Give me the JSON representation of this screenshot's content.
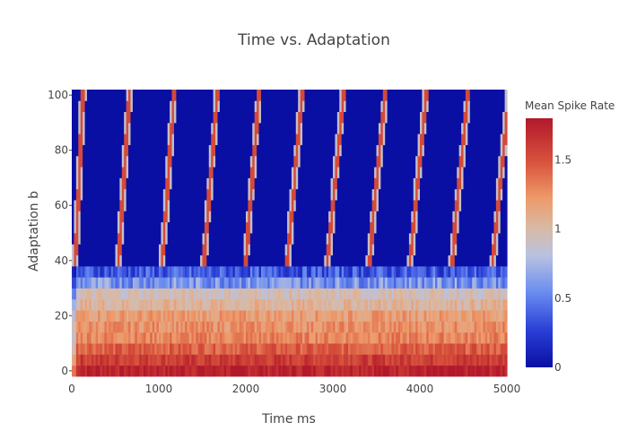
{
  "chart_data": {
    "type": "heatmap",
    "title": "Time vs. Adaptation",
    "xlabel": "Time ms",
    "ylabel": "Adaptation b",
    "xlim": [
      0,
      5000
    ],
    "ylim": [
      -2,
      102
    ],
    "x_ticks": [
      0,
      1000,
      2000,
      3000,
      4000,
      5000
    ],
    "x_tick_labels": [
      "0",
      "1000",
      "2000",
      "3000",
      "4000",
      "5000"
    ],
    "y_ticks": [
      0,
      20,
      40,
      60,
      80,
      100
    ],
    "y_tick_labels": [
      "0",
      "20",
      "40",
      "60",
      "80",
      "100"
    ],
    "colorbar": {
      "title": "Mean Spike Rate",
      "range": [
        0,
        1.8
      ],
      "ticks": [
        0,
        0.5,
        1,
        1.5
      ],
      "tick_labels": [
        "0",
        "0.5",
        "1",
        "1.5"
      ],
      "colorscale": [
        [
          0,
          "#0a0fa3"
        ],
        [
          0.15,
          "#2a3fd6"
        ],
        [
          0.3,
          "#6a8cf0"
        ],
        [
          0.45,
          "#b9c2e0"
        ],
        [
          0.56,
          "#d9b9a4"
        ],
        [
          0.68,
          "#ee9a6a"
        ],
        [
          0.82,
          "#d9543d"
        ],
        [
          1,
          "#b2182b"
        ]
      ]
    },
    "adaptation_rows": [
      0,
      4,
      8,
      12,
      16,
      20,
      24,
      28,
      32,
      36,
      40,
      44,
      48,
      52,
      56,
      60,
      64,
      68,
      72,
      76,
      80,
      84,
      88,
      92,
      96,
      100
    ],
    "row_mean_rate": [
      1.75,
      1.6,
      1.45,
      1.3,
      1.25,
      1.2,
      1.05,
      0.95,
      0.6,
      0.35,
      0.0,
      0.0,
      0.0,
      0.0,
      0.0,
      0.0,
      0.0,
      0.0,
      0.0,
      0.0,
      0.0,
      0.0,
      0.0,
      0.0,
      0.0,
      0.0
    ],
    "burst_onsets_ms": [
      0,
      500,
      1000,
      1480,
      1960,
      2440,
      2900,
      3380,
      3850,
      4330,
      4800
    ],
    "burst_drift_ms_per_row": [
      6,
      8,
      9,
      10,
      10,
      11,
      12,
      12,
      12,
      12,
      12
    ],
    "burst_peak_rate": 1.8
  }
}
